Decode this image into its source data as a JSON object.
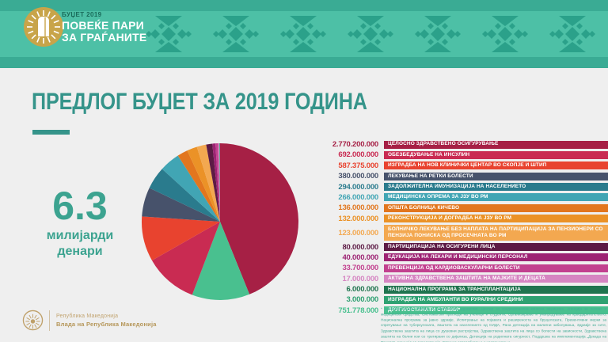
{
  "header": {
    "kicker": "БУЏЕТ 2019",
    "slogan_line1": "ПОВЕЌЕ ПАРИ",
    "slogan_line2": "ЗА ГРАЃАНИТЕ",
    "colors": {
      "strip": "#3aab94",
      "band": "#4dc0a6",
      "motif": "#2ba18a",
      "logo_gold": "#c8a449"
    }
  },
  "title": "ПРЕДЛОГ БУЏЕТ ЗА 2019 ГОДИНА",
  "total": {
    "number": "6.3",
    "unit_line1": "милијарди",
    "unit_line2": "денари"
  },
  "chart_data": {
    "type": "pie",
    "title": "Предлог буџет за 2019 година",
    "total_label": "6.3 милијарди денари",
    "unit": "денари",
    "layout": "slices sorted by value descending, drawn clockwise starting at 12 o'clock; legend list grouped by color family",
    "items": [
      {
        "label": "ЦЕЛОСНО ЗДРАВСТВЕНО ОСИГУРУВАЊЕ",
        "amount": "2.770.200.000",
        "value": 2770200000,
        "color": "#a62045"
      },
      {
        "label": "ОБЕЗБЕДУВАЊЕ НА ИНСУЛИН",
        "amount": "692.000.000",
        "value": 692000000,
        "color": "#c92b52"
      },
      {
        "label": "ИЗГРАДБА НА НОВ КЛИНИЧКИ ЦЕНТАР ВО СКОПЈЕ И ШТИП",
        "amount": "587.375.000",
        "value": 587375000,
        "color": "#e8432f"
      },
      {
        "label": "ЛЕКУВАЊЕ НА РЕТКИ БОЛЕСТИ",
        "amount": "380.000.000",
        "value": 380000000,
        "color": "#47526b"
      },
      {
        "label": "ЗАДОЛЖИТЕЛНА ИМУНИЗАЦИЈА НА НАСЕЛЕНИЕТО",
        "amount": "294.000.000",
        "value": 294000000,
        "color": "#2a7b8d"
      },
      {
        "label": "МЕДИЦИНСКА ОПРЕМА ЗА ЈЗУ ВО РМ",
        "amount": "266.000.000",
        "value": 266000000,
        "color": "#41a5b4"
      },
      {
        "label": "ОПШТА БОЛНИЦА КИЧЕВО",
        "amount": "136.000.000",
        "value": 136000000,
        "color": "#e2761e"
      },
      {
        "label": "РЕКОНСТРУКЦИЈА И ДОГРАДБА НА ЈЗУ ВО РМ",
        "amount": "132.000.000",
        "value": 132000000,
        "color": "#eb9227"
      },
      {
        "label": "БОЛНИЧКО ЛЕКУВАЊЕ БЕЗ НАПЛАТА НА ПАРТИЦИПАЦИЈА ЗА ПЕНЗИОНЕРИ СО ПЕНЗИЈА ПОНИСКА ОД ПРОСЕЧНАТА ВО РМ",
        "amount": "123.000.000",
        "value": 123000000,
        "color": "#f3a850",
        "two_line": true
      },
      {
        "label": "ПАРТИЦИПАЦИЈА НА ОСИГУРЕНИ ЛИЦА",
        "amount": "80.000.000",
        "value": 80000000,
        "color": "#5d1b45"
      },
      {
        "label": "ЕДУКАЦИЈА НА ЛЕКАРИ И МЕДИЦИНСКИ ПЕРСОНАЛ",
        "amount": "40.000.000",
        "value": 40000000,
        "color": "#9d2373"
      },
      {
        "label": "ПРЕВЕНЦИЈА ОД КАРДИОВАСКУЛАРНИ БОЛЕСТИ",
        "amount": "33.700.000",
        "value": 33700000,
        "color": "#c2418f"
      },
      {
        "label": "АКТИВНА ЗДРАВСТВЕНА ЗАШТИТА НА МАЈКИТЕ И ДЕЦАТА",
        "amount": "17.000.000",
        "value": 17000000,
        "color": "#d685c2"
      },
      {
        "label": "НАЦИОНАЛНА ПРОГРАМА ЗА ТРАНСПЛАНТАЦИЈА",
        "amount": "6.000.000",
        "value": 6000000,
        "color": "#20744f"
      },
      {
        "label": "ИЗГРАДБА НА АМБУЛАНТИ ВО РУРАЛНИ СРЕДИНИ",
        "amount": "3.000.000",
        "value": 3000000,
        "color": "#2fa172"
      },
      {
        "label": "ДРУГИ/ОСТАНАТИ СТАВКИ*",
        "amount": "751.778.000",
        "value": 751778000,
        "color": "#49c08f"
      }
    ]
  },
  "footnote": "* Администрација, Управа за електронско здравство, Центар за традиционална кинеска медицина, Агенција за лекови и медицински средства, Систематски прегледи на ученици и студенти, Организирање и унапредување на крводарителството, Национална програма за јавно здравје, Испитување на појавата и раширеноста на бруцелозата, Превентивни мерки за спречување на туберкулозата, Заштита на населението од СИДА, Рана детекција на малигни заболувања, Здравје за сите, Здравствена заштита на лица со душевни растројства, Здравствена заштита на лица со болести на зависности, Здравствена заштита на болни кои се третирани со дијализа, Детекција на родилната сигурност, Поддршка на имплементација „Декада на Ромите“, Агенција за акредитација, Стручно оспособување и усовршување",
  "footer": {
    "line1": "Република Македонија",
    "line2": "Влада на Република Македонија"
  }
}
